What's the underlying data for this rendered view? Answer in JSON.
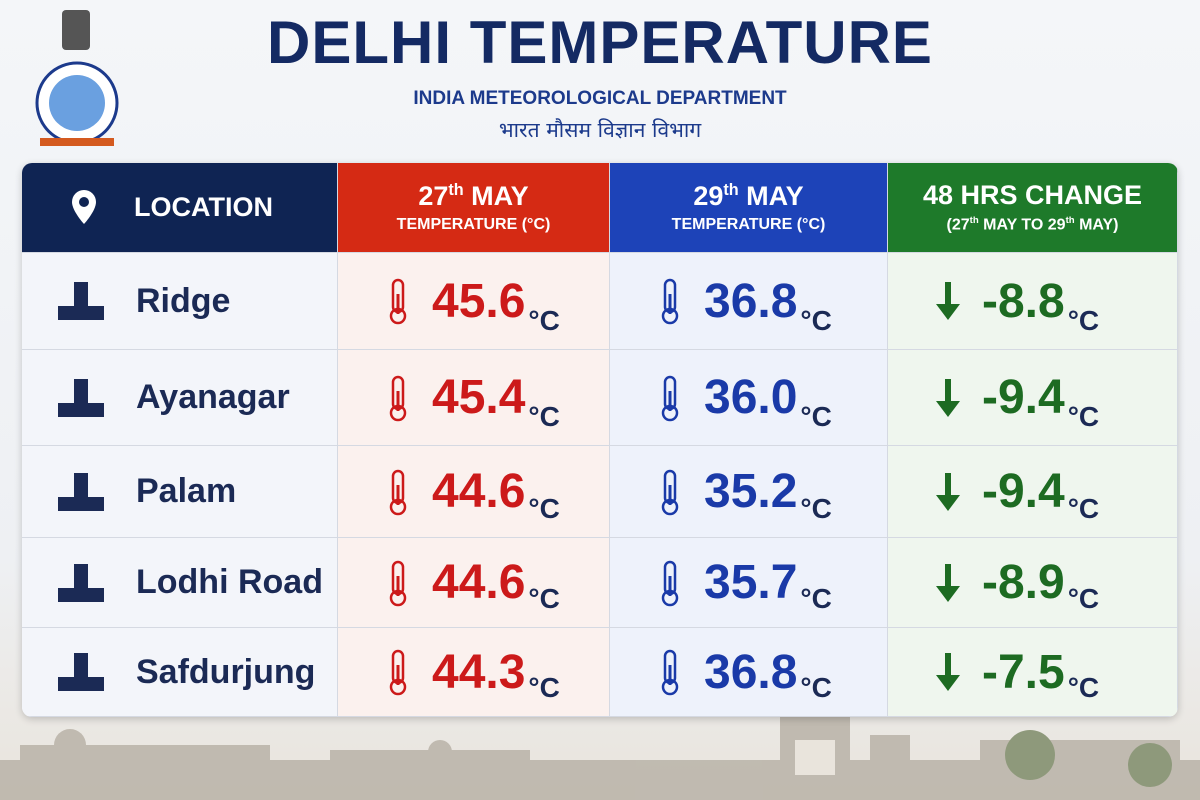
{
  "header": {
    "title": "DELHI TEMPERATURE",
    "org_en": "INDIA METEOROLOGICAL DEPARTMENT",
    "org_hi": "भारत मौसम विज्ञान विभाग"
  },
  "table": {
    "unit": "°C",
    "columns": [
      {
        "title": [
          "LOCATION"
        ]
      },
      {
        "title": [
          "27",
          "th",
          " MAY"
        ],
        "sub": [
          "TEMPERATURE (°C)"
        ]
      },
      {
        "title": [
          "29",
          "th",
          " MAY"
        ],
        "sub": [
          "TEMPERATURE (°C)"
        ]
      },
      {
        "title": [
          "48 HRS CHANGE"
        ],
        "sub": [
          "(27",
          "th",
          " MAY TO 29",
          "th",
          " MAY)"
        ]
      }
    ],
    "rows": [
      [
        "Ridge",
        "45.6",
        "36.8",
        "-8.8"
      ],
      [
        "Ayanagar",
        "45.4",
        "36.0",
        "-9.4"
      ],
      [
        "Palam",
        "44.6",
        "35.2",
        "-9.4"
      ],
      [
        "Lodhi Road",
        "44.6",
        "35.7",
        "-8.9"
      ],
      [
        "Safdurjung",
        "44.3",
        "36.8",
        "-7.5"
      ]
    ]
  }
}
